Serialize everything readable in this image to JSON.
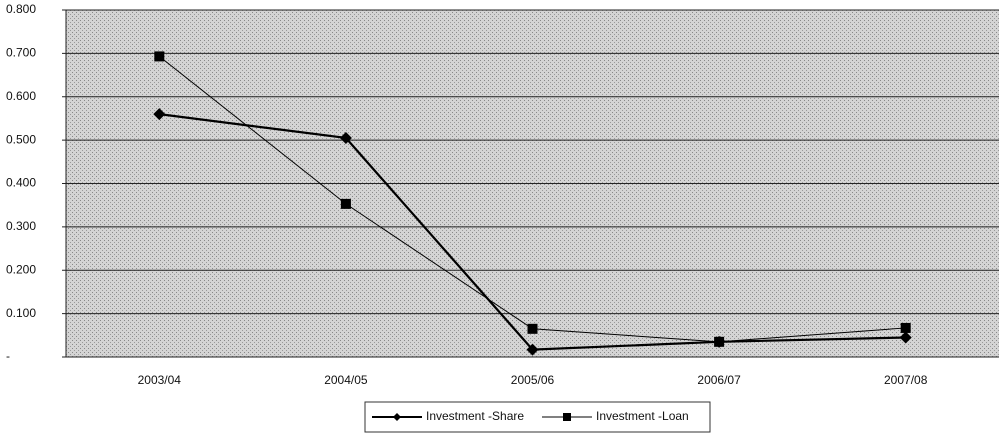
{
  "chart_data": {
    "type": "line",
    "categories": [
      "2003/04",
      "2004/05",
      "2005/06",
      "2006/07",
      "2007/08"
    ],
    "series": [
      {
        "name": "Investment -Share",
        "color": "#000000",
        "marker": "diamond",
        "values": [
          0.56,
          0.505,
          0.017,
          0.035,
          0.045
        ]
      },
      {
        "name": "Investment -Loan",
        "color": "#000000",
        "marker": "square",
        "values": [
          0.693,
          0.353,
          0.065,
          0.035,
          0.067
        ]
      }
    ],
    "ylim": [
      0,
      0.8
    ],
    "yticks": [
      {
        "value": 0,
        "label": "-"
      },
      {
        "value": 0.1,
        "label": "0.100"
      },
      {
        "value": 0.2,
        "label": "0.200"
      },
      {
        "value": 0.3,
        "label": "0.300"
      },
      {
        "value": 0.4,
        "label": "0.400"
      },
      {
        "value": 0.5,
        "label": "0.500"
      },
      {
        "value": 0.6,
        "label": "0.600"
      },
      {
        "value": 0.7,
        "label": "0.700"
      },
      {
        "value": 0.8,
        "label": "0.800"
      }
    ],
    "grid": true,
    "legend": "bottom"
  }
}
